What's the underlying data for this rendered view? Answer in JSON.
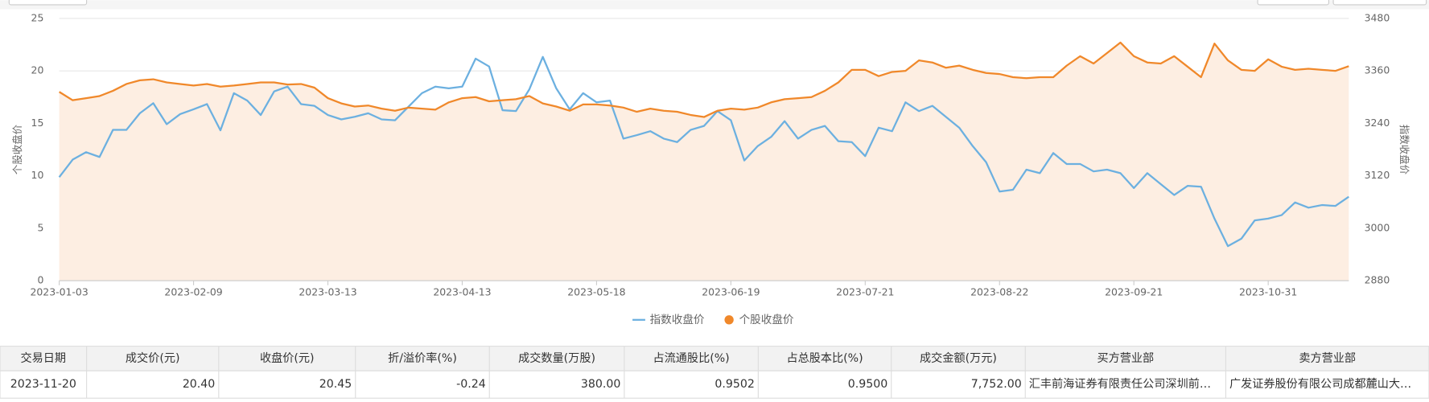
{
  "chart_data": {
    "type": "line",
    "y_label": "个股收盘价",
    "y2_label": "指数收盘价",
    "categories": [
      "2023-01-03",
      null,
      null,
      null,
      null,
      null,
      null,
      null,
      null,
      null,
      "2023-02-09",
      null,
      null,
      null,
      null,
      null,
      null,
      null,
      null,
      null,
      "2023-03-13",
      null,
      null,
      null,
      null,
      null,
      null,
      null,
      null,
      null,
      "2023-04-13",
      null,
      null,
      null,
      null,
      null,
      null,
      null,
      null,
      null,
      "2023-05-18",
      null,
      null,
      null,
      null,
      null,
      null,
      null,
      null,
      null,
      "2023-06-19",
      null,
      null,
      null,
      null,
      null,
      null,
      null,
      null,
      null,
      "2023-07-21",
      null,
      null,
      null,
      null,
      null,
      null,
      null,
      null,
      null,
      "2023-08-22",
      null,
      null,
      null,
      null,
      null,
      null,
      null,
      null,
      null,
      "2023-09-21",
      null,
      null,
      null,
      null,
      null,
      null,
      null,
      null,
      null,
      "2023-10-31",
      null,
      null,
      null,
      null,
      null,
      null
    ],
    "series": [
      {
        "name": "指数收盘价",
        "color": "#6cb0e0",
        "axis": "y2",
        "marker": "line",
        "values": [
          3117,
          3157,
          3174,
          3163,
          3225,
          3225,
          3263,
          3286,
          3238,
          3261,
          3272,
          3284,
          3224,
          3309,
          3292,
          3259,
          3313,
          3324,
          3284,
          3280,
          3259,
          3249,
          3255,
          3263,
          3249,
          3247,
          3278,
          3309,
          3324,
          3320,
          3324,
          3388,
          3370,
          3270,
          3268,
          3318,
          3392,
          3320,
          3272,
          3309,
          3288,
          3292,
          3205,
          3213,
          3222,
          3205,
          3197,
          3225,
          3234,
          3268,
          3247,
          3155,
          3188,
          3209,
          3245,
          3205,
          3225,
          3234,
          3199,
          3197,
          3165,
          3230,
          3222,
          3288,
          3268,
          3280,
          3255,
          3230,
          3188,
          3151,
          3084,
          3088,
          3134,
          3126,
          3172,
          3147,
          3147,
          3130,
          3134,
          3126,
          3092,
          3126,
          3101,
          3076,
          3097,
          3095,
          3022,
          2959,
          2976,
          3018,
          3022,
          3030,
          3059,
          3047,
          3053,
          3051,
          3072
        ]
      },
      {
        "name": "个股收盘价",
        "color": "#f0882a",
        "axis": "y",
        "marker": "dot",
        "area": true,
        "area_color": "#fdeee2",
        "values": [
          18.0,
          17.2,
          17.4,
          17.6,
          18.1,
          18.75,
          19.1,
          19.2,
          18.9,
          18.75,
          18.6,
          18.75,
          18.5,
          18.6,
          18.75,
          18.9,
          18.9,
          18.7,
          18.75,
          18.4,
          17.4,
          16.9,
          16.6,
          16.7,
          16.4,
          16.2,
          16.5,
          16.4,
          16.3,
          17.0,
          17.4,
          17.5,
          17.1,
          17.2,
          17.3,
          17.6,
          16.9,
          16.6,
          16.2,
          16.8,
          16.8,
          16.7,
          16.5,
          16.1,
          16.4,
          16.2,
          16.1,
          15.8,
          15.6,
          16.2,
          16.4,
          16.3,
          16.5,
          17.0,
          17.3,
          17.4,
          17.5,
          18.1,
          18.9,
          20.1,
          20.1,
          19.5,
          19.9,
          20.0,
          21.0,
          20.8,
          20.3,
          20.5,
          20.1,
          19.8,
          19.7,
          19.4,
          19.3,
          19.4,
          19.4,
          20.5,
          21.4,
          20.7,
          21.7,
          22.7,
          21.4,
          20.8,
          20.7,
          21.4,
          20.4,
          19.4,
          22.6,
          21.0,
          20.1,
          20.0,
          21.1,
          20.4,
          20.1,
          20.2,
          20.1,
          20.0,
          20.45
        ]
      }
    ],
    "ylim": [
      0,
      25
    ],
    "yticks": [
      0,
      5,
      10,
      15,
      20,
      25
    ],
    "y2lim": [
      2880,
      3480
    ],
    "y2ticks": [
      2880,
      3000,
      3120,
      3240,
      3360,
      3480
    ],
    "grid": true,
    "legend": "bottom"
  },
  "table": {
    "columns": [
      "交易日期",
      "成交价(元)",
      "收盘价(元)",
      "折/溢价率(%)",
      "成交数量(万股)",
      "占流通股比(%)",
      "占总股本比(%)",
      "成交金额(万元)",
      "买方营业部",
      "卖方营业部"
    ],
    "rows": [
      [
        "2023-11-20",
        "20.40",
        "20.45",
        "-0.24",
        "380.00",
        "0.9502",
        "0.9500",
        "7,752.00",
        "汇丰前海证券有限责任公司深圳前…",
        "广发证券股份有限公司成都麓山大…"
      ]
    ]
  }
}
